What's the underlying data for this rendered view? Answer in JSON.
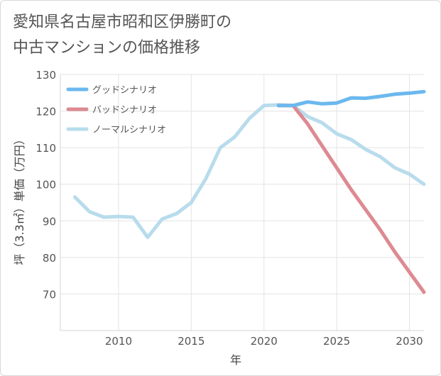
{
  "chart_data": {
    "type": "line",
    "title": "愛知県名古屋市昭和区伊勝町の\n中古マンションの価格推移",
    "xlabel": "年",
    "ylabel": "坪（3.3㎡）単価（万円）",
    "xlim": [
      2006,
      2031
    ],
    "ylim": [
      60,
      130
    ],
    "xticks": [
      "2010",
      "2015",
      "2020",
      "2025",
      "2030"
    ],
    "yticks": [
      "70",
      "80",
      "90",
      "100",
      "110",
      "120",
      "130"
    ],
    "grid": true,
    "legend": "top-left",
    "series": [
      {
        "name": "グッドシナリオ",
        "color": "#6bb8ee",
        "x": [
          2021,
          2022,
          2023,
          2024,
          2025,
          2026,
          2027,
          2028,
          2029,
          2030,
          2031
        ],
        "y": [
          121.5,
          121.5,
          122.5,
          122.0,
          122.2,
          123.6,
          123.5,
          124.0,
          124.6,
          124.9,
          125.3
        ]
      },
      {
        "name": "バッドシナリオ",
        "color": "#dd8a92",
        "x": [
          2021,
          2022,
          2023,
          2024,
          2025,
          2026,
          2027,
          2028,
          2029,
          2030,
          2031
        ],
        "y": [
          121.5,
          121.5,
          116.5,
          110.5,
          104.5,
          98.5,
          93.0,
          87.5,
          81.5,
          76.0,
          70.5
        ]
      },
      {
        "name": "ノーマルシナリオ",
        "color": "#b8dcec",
        "x": [
          2007,
          2008,
          2009,
          2010,
          2011,
          2012,
          2013,
          2014,
          2015,
          2016,
          2017,
          2018,
          2019,
          2020,
          2021,
          2022,
          2023,
          2024,
          2025,
          2026,
          2027,
          2028,
          2029,
          2030,
          2031
        ],
        "y": [
          96.5,
          92.5,
          91.0,
          91.2,
          91.0,
          85.5,
          90.5,
          92.0,
          95.0,
          101.5,
          110.0,
          113.0,
          118.0,
          121.5,
          121.7,
          121.5,
          118.5,
          116.8,
          113.8,
          112.2,
          109.5,
          107.5,
          104.5,
          102.8,
          100.0
        ]
      }
    ]
  }
}
